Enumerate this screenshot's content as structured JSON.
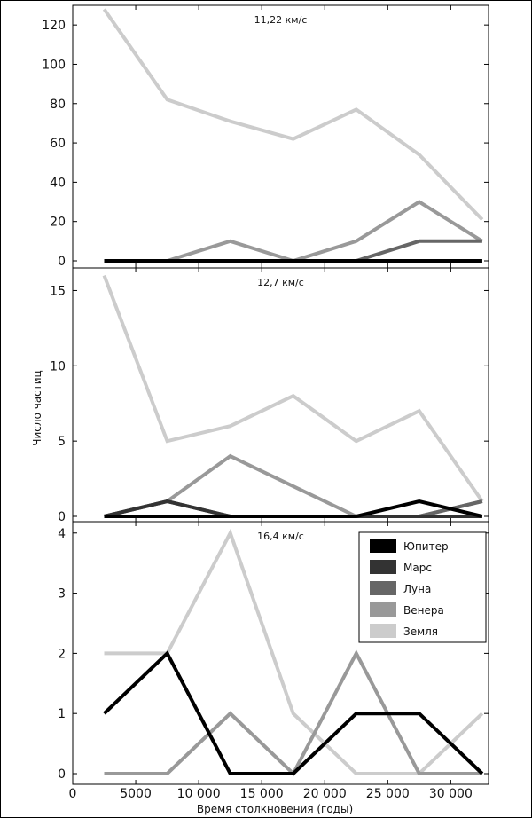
{
  "chart_data": {
    "type": "line",
    "xlabel": "Время столкновения (годы)",
    "ylabel": "Число частиц",
    "xlim": [
      0,
      33000
    ],
    "x_ticks": [
      0,
      5000,
      10000,
      15000,
      20000,
      25000,
      30000
    ],
    "x_tick_labels": [
      "0",
      "5000",
      "10 000",
      "15 000",
      "20 000",
      "25 000",
      "30 000"
    ],
    "x": [
      2500,
      7500,
      12500,
      17500,
      22500,
      27500,
      32500
    ],
    "series_styles": [
      {
        "name": "Юпитер",
        "color": "#000000"
      },
      {
        "name": "Марс",
        "color": "#333333"
      },
      {
        "name": "Луна",
        "color": "#666666"
      },
      {
        "name": "Венера",
        "color": "#999999"
      },
      {
        "name": "Земля",
        "color": "#cccccc"
      }
    ],
    "legend": {
      "placement": "top-right",
      "panel": 2
    },
    "panels": [
      {
        "title": "11,22 км/с",
        "ylim": [
          0,
          130
        ],
        "y_ticks": [
          0,
          20,
          40,
          60,
          80,
          100,
          120
        ],
        "series": [
          {
            "name": "Земля",
            "values": [
              128,
              82,
              71,
              62,
              77,
              54,
              21
            ]
          },
          {
            "name": "Венера",
            "values": [
              0,
              0,
              10,
              0,
              10,
              30,
              10
            ]
          },
          {
            "name": "Луна",
            "values": [
              0,
              0,
              0,
              0,
              0,
              10,
              10
            ]
          },
          {
            "name": "Марс",
            "values": [
              0,
              0,
              0,
              0,
              0,
              0,
              0
            ]
          },
          {
            "name": "Юпитер",
            "values": [
              0,
              0,
              0,
              0,
              0,
              0,
              0
            ]
          }
        ]
      },
      {
        "title": "12,7 км/с",
        "ylim": [
          0,
          16.5
        ],
        "y_ticks": [
          0,
          5,
          10,
          15
        ],
        "series": [
          {
            "name": "Земля",
            "values": [
              16,
              5,
              6,
              8,
              5,
              7,
              1
            ]
          },
          {
            "name": "Венера",
            "values": [
              0,
              1,
              4,
              2,
              0,
              0,
              1
            ]
          },
          {
            "name": "Луна",
            "values": [
              0,
              1,
              0,
              0,
              0,
              0,
              1
            ]
          },
          {
            "name": "Марс",
            "values": [
              0,
              1,
              0,
              0,
              0,
              0,
              0
            ]
          },
          {
            "name": "Юпитер",
            "values": [
              0,
              0,
              0,
              0,
              0,
              1,
              0
            ]
          }
        ]
      },
      {
        "title": "16,4 км/с",
        "ylim": [
          0,
          4.1
        ],
        "y_ticks": [
          0,
          1,
          2,
          3,
          4
        ],
        "series": [
          {
            "name": "Земля",
            "values": [
              2,
              2,
              4,
              1,
              0,
              0,
              1
            ]
          },
          {
            "name": "Венера",
            "values": [
              0,
              0,
              1,
              0,
              2,
              0,
              0
            ]
          },
          {
            "name": "Юпитер",
            "values": [
              1,
              2,
              0,
              0,
              1,
              1,
              0
            ]
          }
        ]
      }
    ]
  }
}
